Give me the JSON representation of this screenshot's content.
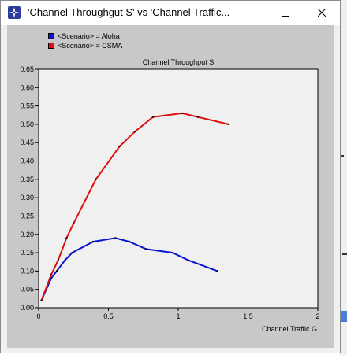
{
  "window": {
    "title": "'Channel Throughgut S' vs 'Channel Traffic...",
    "app_icon": "opnet-star-icon",
    "controls": {
      "minimize_icon": "minimize-icon",
      "maximize_icon": "maximize-icon",
      "close_icon": "close-icon"
    }
  },
  "legend": {
    "items": [
      {
        "label": "<Scenario> = Aloha",
        "color": "#0a14d8"
      },
      {
        "label": "<Scenario> = CSMA",
        "color": "#e01010"
      }
    ]
  },
  "chart_data": {
    "type": "line",
    "title": "Channel Throughput S",
    "xlabel": "Channel Traffic G",
    "ylabel": "",
    "xlim": [
      0,
      2
    ],
    "ylim": [
      0,
      0.65
    ],
    "xticks": [
      "0",
      "0.5",
      "1",
      "1.5",
      "2"
    ],
    "yticks": [
      "0.00",
      "0.05",
      "0.10",
      "0.15",
      "0.20",
      "0.25",
      "0.30",
      "0.35",
      "0.40",
      "0.45",
      "0.50",
      "0.55",
      "0.60",
      "0.65"
    ],
    "grid": false,
    "legend_position": "top-left",
    "series": [
      {
        "name": "<Scenario> = Aloha",
        "color": "#0a14d8",
        "x": [
          0.02,
          0.09,
          0.13,
          0.19,
          0.24,
          0.39,
          0.55,
          0.65,
          0.77,
          0.96,
          1.07,
          1.28
        ],
        "y": [
          0.02,
          0.08,
          0.1,
          0.13,
          0.15,
          0.18,
          0.19,
          0.18,
          0.16,
          0.15,
          0.13,
          0.1
        ]
      },
      {
        "name": "<Scenario> = CSMA",
        "color": "#e01010",
        "x": [
          0.02,
          0.09,
          0.14,
          0.2,
          0.25,
          0.41,
          0.58,
          0.69,
          0.82,
          1.03,
          1.14,
          1.36
        ],
        "y": [
          0.02,
          0.09,
          0.13,
          0.19,
          0.23,
          0.35,
          0.44,
          0.48,
          0.52,
          0.53,
          0.52,
          0.5
        ]
      }
    ]
  }
}
